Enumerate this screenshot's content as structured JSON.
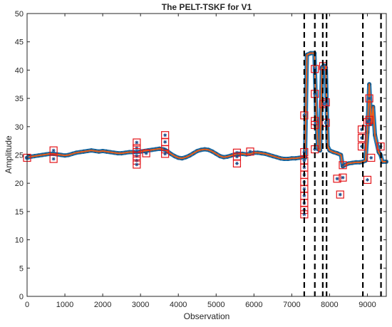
{
  "chart_data": {
    "type": "line",
    "title": "The PELT-TSKF for V1",
    "xlabel": "Observation",
    "ylabel": "Amplitude",
    "xlim": [
      0,
      9500
    ],
    "ylim": [
      0,
      50
    ],
    "xticks": [
      0,
      1000,
      2000,
      3000,
      4000,
      5000,
      6000,
      7000,
      8000,
      9000
    ],
    "yticks": [
      0,
      5,
      10,
      15,
      20,
      25,
      30,
      35,
      40,
      45,
      50
    ],
    "grid": false,
    "legend": "none",
    "colors": {
      "observed": "#1f77b4",
      "estimate": "#e8601c",
      "outlier_box": "#e3151a",
      "changepoint": "#000000"
    },
    "series": [
      {
        "role": "observed-markers",
        "marker": "star",
        "x": [
          0,
          100,
          200,
          300,
          400,
          500,
          600,
          700,
          800,
          900,
          1000,
          1100,
          1200,
          1300,
          1400,
          1500,
          1600,
          1700,
          1800,
          1900,
          2000,
          2100,
          2200,
          2300,
          2400,
          2500,
          2600,
          2700,
          2800,
          2900,
          3000,
          3100,
          3200,
          3300,
          3400,
          3500,
          3600,
          3700,
          3800,
          3900,
          4000,
          4100,
          4200,
          4300,
          4400,
          4500,
          4600,
          4700,
          4800,
          4900,
          5000,
          5100,
          5200,
          5300,
          5400,
          5500,
          5600,
          5700,
          5800,
          5900,
          6000,
          6100,
          6200,
          6300,
          6400,
          6500,
          6600,
          6700,
          6800,
          6900,
          7000,
          7100,
          7200,
          7300,
          7350,
          7400,
          7500,
          7600,
          7650,
          7700,
          7750,
          7800,
          7850,
          7900,
          7950,
          8000,
          8100,
          8200,
          8300,
          8350,
          8400,
          8500,
          8600,
          8700,
          8800,
          8880,
          8950,
          9000,
          9050,
          9100,
          9150,
          9200,
          9300,
          9350,
          9400,
          9500
        ],
        "y": [
          24.5,
          24.7,
          24.8,
          24.9,
          25.0,
          25.1,
          25.2,
          25.2,
          25.1,
          25.0,
          24.9,
          25.0,
          25.2,
          25.4,
          25.5,
          25.6,
          25.7,
          25.8,
          25.7,
          25.6,
          25.7,
          25.6,
          25.5,
          25.4,
          25.3,
          25.3,
          25.4,
          25.5,
          25.5,
          25.5,
          25.6,
          25.7,
          25.8,
          25.9,
          26.0,
          26.1,
          26.0,
          25.7,
          25.2,
          24.8,
          24.5,
          24.4,
          24.6,
          24.9,
          25.3,
          25.7,
          25.9,
          26.0,
          25.9,
          25.6,
          25.2,
          24.8,
          24.6,
          24.7,
          24.9,
          25.1,
          25.2,
          25.2,
          25.1,
          25.2,
          25.4,
          25.4,
          25.3,
          25.2,
          25.0,
          24.8,
          24.6,
          24.4,
          24.3,
          24.3,
          24.4,
          24.4,
          24.5,
          24.6,
          24.5,
          42.7,
          43.0,
          43.0,
          31.0,
          26.0,
          25.8,
          40.5,
          40.8,
          40.5,
          26.5,
          25.8,
          25.5,
          25.3,
          25.0,
          23.0,
          23.2,
          23.5,
          23.6,
          23.7,
          23.7,
          23.8,
          24.0,
          29.0,
          37.5,
          30.5,
          33.5,
          28.5,
          25.5,
          25.0,
          23.8,
          23.8
        ]
      },
      {
        "role": "estimate-line",
        "x": [
          0,
          100,
          200,
          300,
          400,
          500,
          600,
          700,
          800,
          900,
          1000,
          1100,
          1200,
          1300,
          1400,
          1500,
          1600,
          1700,
          1800,
          1900,
          2000,
          2100,
          2200,
          2300,
          2400,
          2500,
          2600,
          2700,
          2800,
          2900,
          3000,
          3100,
          3200,
          3300,
          3400,
          3500,
          3600,
          3700,
          3800,
          3900,
          4000,
          4100,
          4200,
          4300,
          4400,
          4500,
          4600,
          4700,
          4800,
          4900,
          5000,
          5100,
          5200,
          5300,
          5400,
          5500,
          5600,
          5700,
          5800,
          5900,
          6000,
          6100,
          6200,
          6300,
          6400,
          6500,
          6600,
          6700,
          6800,
          6900,
          7000,
          7100,
          7200,
          7300,
          7350,
          7400,
          7500,
          7600,
          7650,
          7700,
          7750,
          7800,
          7850,
          7900,
          7950,
          8000,
          8100,
          8200,
          8300,
          8350,
          8400,
          8500,
          8600,
          8700,
          8800,
          8880,
          8950,
          9000,
          9050,
          9100,
          9150,
          9200,
          9300,
          9350,
          9400,
          9500
        ],
        "y": [
          24.5,
          24.7,
          24.8,
          24.9,
          25.0,
          25.1,
          25.2,
          25.2,
          25.1,
          25.0,
          24.9,
          25.0,
          25.2,
          25.4,
          25.5,
          25.6,
          25.7,
          25.8,
          25.7,
          25.6,
          25.7,
          25.6,
          25.5,
          25.4,
          25.3,
          25.3,
          25.4,
          25.5,
          25.5,
          25.5,
          25.6,
          25.7,
          25.8,
          25.9,
          26.0,
          26.1,
          26.0,
          25.7,
          25.2,
          24.8,
          24.5,
          24.4,
          24.6,
          24.9,
          25.3,
          25.7,
          25.9,
          26.0,
          25.9,
          25.6,
          25.2,
          24.8,
          24.6,
          24.7,
          24.9,
          25.1,
          25.2,
          25.2,
          25.1,
          25.2,
          25.4,
          25.4,
          25.3,
          25.2,
          25.0,
          24.8,
          24.6,
          24.4,
          24.3,
          24.3,
          24.4,
          24.4,
          24.5,
          24.6,
          24.5,
          42.7,
          43.0,
          43.0,
          31.0,
          26.0,
          25.8,
          40.5,
          40.8,
          40.5,
          26.5,
          25.8,
          25.5,
          25.3,
          25.0,
          23.0,
          23.2,
          23.5,
          23.6,
          23.7,
          23.7,
          23.8,
          24.0,
          29.0,
          37.5,
          30.5,
          33.5,
          28.5,
          25.5,
          25.0,
          23.8,
          23.8
        ]
      }
    ],
    "outliers": {
      "x": [
        0,
        700,
        700,
        2900,
        2900,
        2900,
        2900,
        2900,
        2900,
        3150,
        3650,
        3650,
        3650,
        3650,
        5550,
        5550,
        5550,
        5900,
        7330,
        7330,
        7330,
        7330,
        7330,
        7330,
        7330,
        7330,
        7330,
        7330,
        7330,
        7610,
        7610,
        7610,
        7610,
        7610,
        7830,
        7830,
        7900,
        7900,
        8200,
        8280,
        8350,
        8350,
        8850,
        8850,
        8850,
        9000,
        9000,
        9050,
        9050,
        9100,
        9350
      ],
      "y": [
        24.5,
        25.8,
        24.3,
        27.2,
        26.2,
        25.5,
        24.8,
        24.0,
        23.3,
        25.3,
        28.5,
        27.3,
        26.0,
        25.2,
        25.4,
        24.7,
        23.5,
        25.6,
        32.0,
        25.5,
        24.0,
        22.8,
        21.5,
        20.2,
        19.0,
        17.8,
        16.5,
        15.3,
        14.5,
        40.2,
        35.8,
        31.0,
        30.3,
        26.0,
        40.7,
        34.0,
        34.3,
        30.7,
        20.8,
        18.0,
        23.2,
        21.0,
        29.5,
        28.0,
        26.5,
        30.8,
        20.6,
        35.0,
        31.2,
        24.5,
        26.5
      ]
    },
    "change_points": [
      7330,
      7610,
      7820,
      7920,
      8880,
      9360
    ]
  }
}
